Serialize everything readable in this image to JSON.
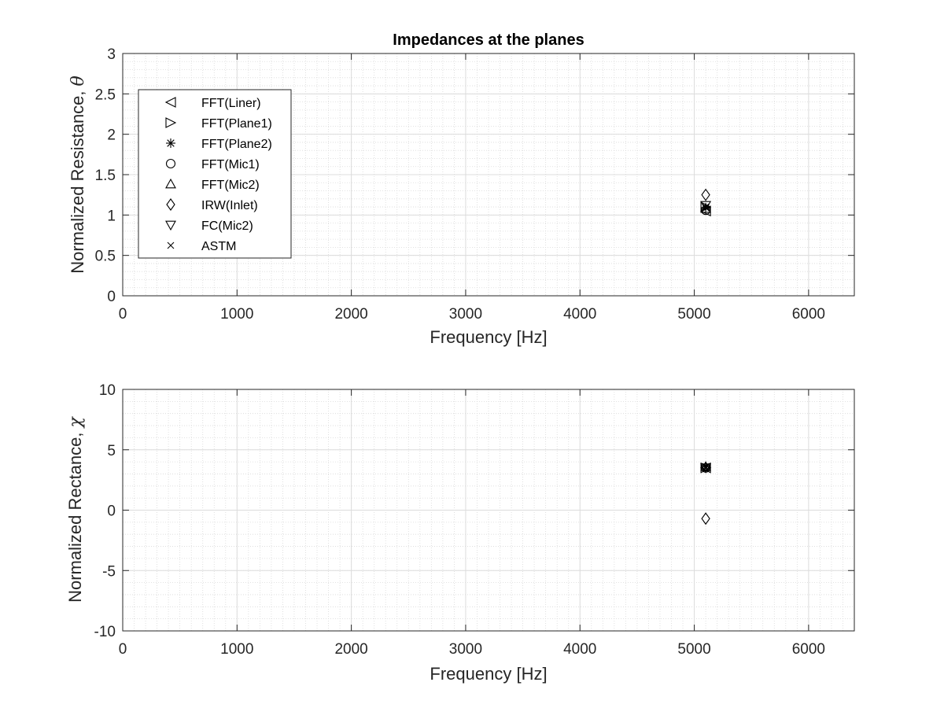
{
  "chart_data": [
    {
      "type": "scatter",
      "title": "Impedances at the planes",
      "xlabel": "Frequency [Hz]",
      "ylabel": "Normalized Resistance,",
      "ylabel_symbol": "θ",
      "xlim": [
        0,
        6400
      ],
      "ylim": [
        0,
        3
      ],
      "xticks": [
        0,
        1000,
        2000,
        3000,
        4000,
        5000,
        6000
      ],
      "yticks": [
        0,
        0.5,
        1,
        1.5,
        2,
        2.5,
        3
      ],
      "xtick_labels": [
        "0",
        "1000",
        "2000",
        "3000",
        "4000",
        "5000",
        "6000"
      ],
      "ytick_labels": [
        "0",
        "0.5",
        "1",
        "1.5",
        "2",
        "2.5",
        "3"
      ],
      "grid": true,
      "minor_grid": true,
      "legend_position": "top-left",
      "series": [
        {
          "name": "FFT(Liner)",
          "marker": "triangle-left",
          "points": [
            [
              5100,
              1.05
            ]
          ]
        },
        {
          "name": "FFT(Plane1)",
          "marker": "triangle-right",
          "points": [
            [
              5100,
              1.1
            ]
          ]
        },
        {
          "name": "FFT(Plane2)",
          "marker": "asterisk",
          "points": [
            [
              5100,
              1.09
            ]
          ]
        },
        {
          "name": "FFT(Mic1)",
          "marker": "circle",
          "points": [
            [
              5100,
              1.06
            ]
          ]
        },
        {
          "name": "FFT(Mic2)",
          "marker": "triangle-up",
          "points": [
            [
              5100,
              1.08
            ]
          ]
        },
        {
          "name": "IRW(Inlet)",
          "marker": "diamond",
          "points": [
            [
              5100,
              1.25
            ]
          ]
        },
        {
          "name": "FC(Mic2)",
          "marker": "triangle-down",
          "points": [
            [
              5100,
              1.12
            ]
          ]
        },
        {
          "name": "ASTM",
          "marker": "x",
          "points": [
            [
              5100,
              1.1
            ]
          ]
        }
      ]
    },
    {
      "type": "scatter",
      "title": "",
      "xlabel": "Frequency [Hz]",
      "ylabel": "Normalized Rectance,",
      "ylabel_symbol": "χ",
      "xlim": [
        0,
        6400
      ],
      "ylim": [
        -10,
        10
      ],
      "xticks": [
        0,
        1000,
        2000,
        3000,
        4000,
        5000,
        6000
      ],
      "yticks": [
        -10,
        -5,
        0,
        5,
        10
      ],
      "xtick_labels": [
        "0",
        "1000",
        "2000",
        "3000",
        "4000",
        "5000",
        "6000"
      ],
      "ytick_labels": [
        "-10",
        "-5",
        "0",
        "5",
        "10"
      ],
      "grid": true,
      "minor_grid": true,
      "series": [
        {
          "name": "FFT(Liner)",
          "marker": "triangle-left",
          "points": [
            [
              5100,
              3.5
            ]
          ]
        },
        {
          "name": "FFT(Plane1)",
          "marker": "triangle-right",
          "points": [
            [
              5100,
              3.5
            ]
          ]
        },
        {
          "name": "FFT(Plane2)",
          "marker": "asterisk",
          "points": [
            [
              5100,
              3.6
            ]
          ]
        },
        {
          "name": "FFT(Mic1)",
          "marker": "circle",
          "points": [
            [
              5100,
              3.5
            ]
          ]
        },
        {
          "name": "FFT(Mic2)",
          "marker": "triangle-up",
          "points": [
            [
              5100,
              3.6
            ]
          ]
        },
        {
          "name": "IRW(Inlet)",
          "marker": "diamond",
          "points": [
            [
              5100,
              -0.7
            ]
          ]
        },
        {
          "name": "FC(Mic2)",
          "marker": "triangle-down",
          "points": [
            [
              5100,
              3.5
            ]
          ]
        },
        {
          "name": "ASTM",
          "marker": "x",
          "points": [
            [
              5100,
              3.5
            ]
          ]
        }
      ]
    }
  ],
  "colors": {
    "marker": "#000000",
    "axis": "#262626",
    "grid_major": "#dcdcdc",
    "grid_minor": "#d9d9d9",
    "background": "#ffffff"
  }
}
